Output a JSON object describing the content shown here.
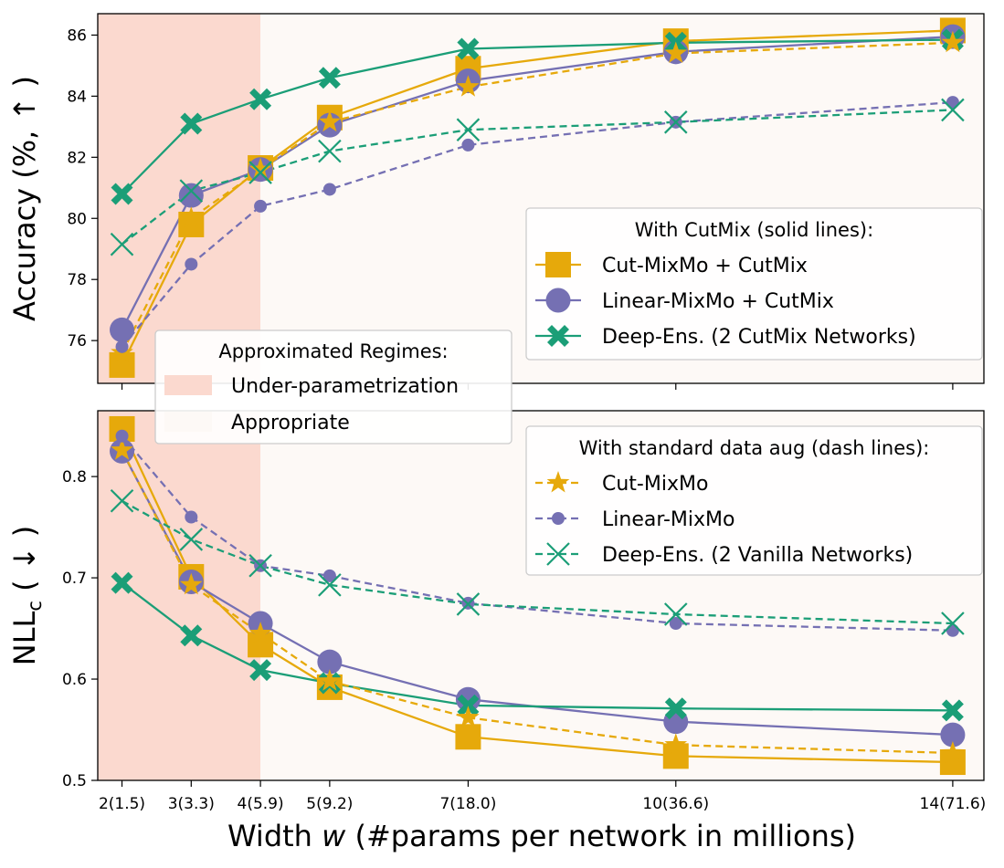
{
  "figure": {
    "xlabel_prefix": "Width ",
    "xlabel_var": "w",
    "xlabel_suffix": " (#params per network in millions)",
    "colors": {
      "cut": "#e6a90b",
      "linear": "#7570b3",
      "deep": "#1b9e77",
      "under_region": "#fbd9cf",
      "appropriate_region": "#fdf9f6"
    }
  },
  "regimes_legend": {
    "title": "Approximated Regimes:",
    "items": [
      "Under-parametrization",
      "Appropriate"
    ]
  },
  "chart_data": [
    {
      "type": "line",
      "panel": "top",
      "ylabel_prefix": "Accuracy (%, ",
      "ylabel_arrow": "↑",
      "ylabel_suffix": " )",
      "x": [
        2,
        3,
        4,
        5,
        7,
        10,
        14
      ],
      "xtick_labels": [
        "2(1.5)",
        "3(3.3)",
        "4(5.9)",
        "5(9.2)",
        "7(18.0)",
        "10(36.6)",
        "14(71.6)"
      ],
      "ylim": [
        74.6,
        86.7
      ],
      "yticks": [
        76,
        78,
        80,
        82,
        84,
        86
      ],
      "under_parametrization_x": [
        1.65,
        4
      ],
      "legend_title": "With CutMix (solid lines):",
      "series": [
        {
          "name": "Cut-MixMo + CutMix",
          "key": "cut",
          "style": "solid",
          "marker": "square",
          "values": [
            75.2,
            79.8,
            81.65,
            83.3,
            84.9,
            85.8,
            86.15
          ]
        },
        {
          "name": "Linear-MixMo + CutMix",
          "key": "linear",
          "style": "solid",
          "marker": "circle",
          "values": [
            76.35,
            80.75,
            81.6,
            83.05,
            84.5,
            85.45,
            85.95
          ]
        },
        {
          "name": "Deep-Ens. (2 CutMix Networks)",
          "key": "deep",
          "style": "solid",
          "marker": "xfilled",
          "values": [
            80.8,
            83.1,
            83.9,
            84.6,
            85.55,
            85.75,
            85.85
          ]
        },
        {
          "name": "Cut-MixMo",
          "key": "cut",
          "style": "dashed",
          "marker": "star",
          "legend": false,
          "values": [
            75.6,
            80.0,
            81.6,
            83.15,
            84.3,
            85.4,
            85.75
          ]
        },
        {
          "name": "Linear-MixMo",
          "key": "linear",
          "style": "dashed",
          "marker": "smallcircle",
          "legend": false,
          "values": [
            75.8,
            78.5,
            80.4,
            80.95,
            82.4,
            83.15,
            83.8
          ]
        },
        {
          "name": "Deep-Ens. (2 Vanilla Networks)",
          "key": "deep",
          "style": "dashed",
          "marker": "x",
          "legend": false,
          "values": [
            79.15,
            80.9,
            81.5,
            82.2,
            82.9,
            83.15,
            83.55
          ]
        }
      ]
    },
    {
      "type": "line",
      "panel": "bottom",
      "ylabel_main": "NLL",
      "ylabel_sub": "c",
      "ylabel_arrow_part": " ( ↓ )",
      "x": [
        2,
        3,
        4,
        5,
        7,
        10,
        14
      ],
      "xtick_labels": [
        "2(1.5)",
        "3(3.3)",
        "4(5.9)",
        "5(9.2)",
        "7(18.0)",
        "10(36.6)",
        "14(71.6)"
      ],
      "ylim": [
        0.5,
        0.865
      ],
      "yticks": [
        0.5,
        0.6,
        0.7,
        0.8
      ],
      "ytick_labels": [
        "0.5",
        "0.6",
        "0.7",
        "0.8"
      ],
      "under_parametrization_x": [
        1.65,
        4
      ],
      "legend_title": "With standard data aug (dash lines):",
      "series": [
        {
          "name": "Cut-MixMo + CutMix",
          "key": "cut",
          "style": "solid",
          "marker": "square",
          "legend": false,
          "values": [
            0.847,
            0.701,
            0.634,
            0.592,
            0.543,
            0.524,
            0.518
          ]
        },
        {
          "name": "Linear-MixMo + CutMix",
          "key": "linear",
          "style": "solid",
          "marker": "circle",
          "legend": false,
          "values": [
            0.825,
            0.696,
            0.655,
            0.617,
            0.58,
            0.558,
            0.545
          ]
        },
        {
          "name": "Deep-Ens. (2 CutMix Networks)",
          "key": "deep",
          "style": "solid",
          "marker": "xfilled",
          "legend": false,
          "values": [
            0.695,
            0.643,
            0.609,
            0.596,
            0.574,
            0.571,
            0.569
          ]
        },
        {
          "name": "Cut-MixMo",
          "key": "cut",
          "style": "dashed",
          "marker": "star",
          "values": [
            0.826,
            0.693,
            0.645,
            0.598,
            0.562,
            0.535,
            0.527
          ]
        },
        {
          "name": "Linear-MixMo",
          "key": "linear",
          "style": "dashed",
          "marker": "smallcircle",
          "values": [
            0.84,
            0.76,
            0.712,
            0.702,
            0.675,
            0.655,
            0.648
          ]
        },
        {
          "name": "Deep-Ens. (2 Vanilla Networks)",
          "key": "deep",
          "style": "dashed",
          "marker": "x",
          "values": [
            0.776,
            0.738,
            0.712,
            0.693,
            0.674,
            0.664,
            0.655
          ]
        }
      ]
    }
  ]
}
